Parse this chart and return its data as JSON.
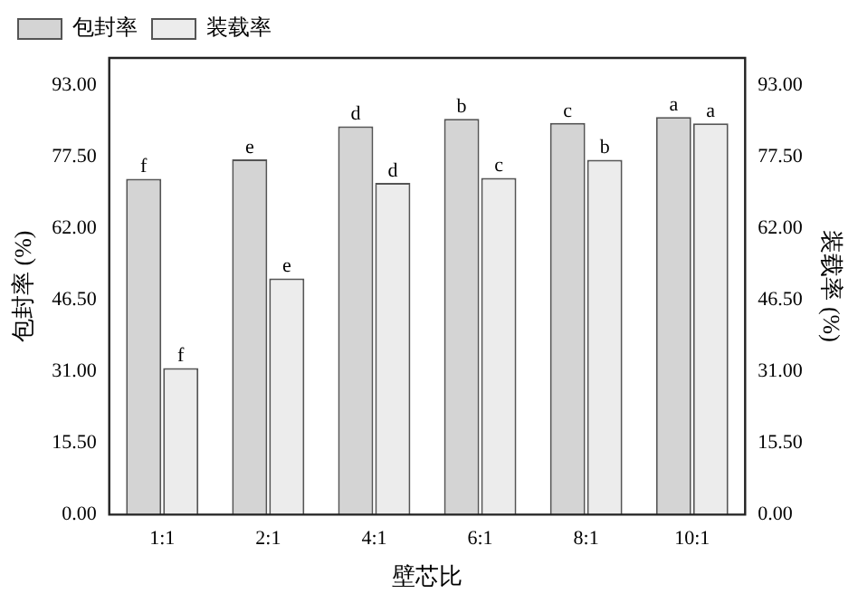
{
  "chart_data": {
    "type": "bar",
    "xlabel": "壁芯比",
    "ylabel": "包封率 (%)",
    "y2label": "装载率 (%)",
    "categories": [
      "1:1",
      "2:1",
      "4:1",
      "6:1",
      "8:1",
      "10:1"
    ],
    "series": [
      {
        "name": "包封率",
        "color": "#d4d4d4",
        "values": [
          72.8,
          77.0,
          84.2,
          85.8,
          84.9,
          86.2
        ]
      },
      {
        "name": "装载率",
        "color": "#ececec",
        "axis": "y2",
        "values": [
          31.8,
          51.2,
          71.9,
          73.0,
          76.9,
          84.8
        ]
      }
    ],
    "ylim": [
      0,
      99
    ],
    "yticks": [
      {
        "value": 0,
        "label": "0.00"
      },
      {
        "value": 15.5,
        "label": "15.50"
      },
      {
        "value": 31,
        "label": "31.00"
      },
      {
        "value": 46.5,
        "label": "46.50"
      },
      {
        "value": 62,
        "label": "62.00"
      },
      {
        "value": 77.5,
        "label": "77.50"
      },
      {
        "value": 93,
        "label": "93.00"
      }
    ],
    "y2lim": [
      0,
      99
    ],
    "y2ticks": [
      {
        "value": 0,
        "label": "0.00"
      },
      {
        "value": 15.5,
        "label": "15.50"
      },
      {
        "value": 31,
        "label": "31.00"
      },
      {
        "value": 46.5,
        "label": "46.50"
      },
      {
        "value": 62,
        "label": "62.00"
      },
      {
        "value": 77.5,
        "label": "77.50"
      },
      {
        "value": 93,
        "label": "93.00"
      }
    ],
    "annotations": [
      {
        "text": "f",
        "x": "1:1",
        "y": 72.8
      },
      {
        "text": "f",
        "x": "1:1",
        "y": 31.8
      },
      {
        "text": "e",
        "x": "2:1",
        "y": 77.0
      },
      {
        "text": "e",
        "x": "2:1",
        "y": 51.2
      },
      {
        "text": "d",
        "x": "4:1",
        "y": 84.2
      },
      {
        "text": "d",
        "x": "4:1",
        "y": 71.9
      },
      {
        "text": "b",
        "x": "6:1",
        "y": 85.8
      },
      {
        "text": "c",
        "x": "6:1",
        "y": 73.0
      },
      {
        "text": "c",
        "x": "8:1",
        "y": 84.9
      },
      {
        "text": "b",
        "x": "8:1",
        "y": 76.9
      },
      {
        "text": "a",
        "x": "10:1",
        "y": 86.2
      },
      {
        "text": "a",
        "x": "10:1",
        "y": 84.8
      }
    ],
    "legend": "top left",
    "grid": false
  }
}
